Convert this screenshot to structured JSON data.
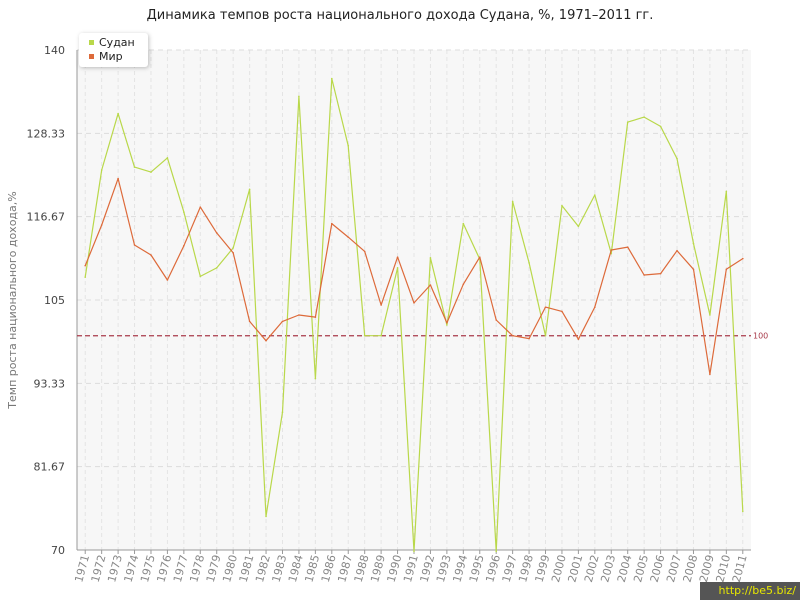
{
  "chart_data": {
    "type": "line",
    "title": "Динамика темпов роста национального дохода Судана, %, 1971–2011 гг.",
    "xlabel": "",
    "ylabel": "Темп роста национального дохода,%",
    "ylim": [
      70,
      140
    ],
    "yticks": [
      "70",
      "81.67",
      "93.33",
      "105",
      "116.67",
      "128.33",
      "140"
    ],
    "grid": true,
    "legend_position": "top-left",
    "reference_line": {
      "value": 100,
      "label": "100",
      "color": "#a83a4a"
    },
    "categories": [
      "1971",
      "1972",
      "1973",
      "1974",
      "1975",
      "1976",
      "1977",
      "1978",
      "1979",
      "1980",
      "1981",
      "1982",
      "1983",
      "1984",
      "1985",
      "1986",
      "1987",
      "1988",
      "1989",
      "1990",
      "1991",
      "1992",
      "1993",
      "1994",
      "1995",
      "1996",
      "1997",
      "1998",
      "1999",
      "2000",
      "2001",
      "2002",
      "2003",
      "2004",
      "2005",
      "2006",
      "2007",
      "2008",
      "2009",
      "2010",
      "2011"
    ],
    "series": [
      {
        "name": "Судан",
        "color": "#b9d84a",
        "values": [
          108.2,
          123.2,
          131.1,
          123.6,
          122.9,
          124.9,
          117.3,
          108.3,
          109.5,
          112.3,
          120.5,
          74.7,
          89.3,
          133.5,
          94.0,
          136.0,
          126.6,
          100.0,
          100.0,
          109.5,
          69.8,
          110.9,
          101.5,
          115.7,
          110.7,
          69.8,
          118.8,
          110.2,
          100.0,
          118.2,
          115.3,
          119.7,
          111.5,
          129.9,
          130.6,
          129.3,
          124.8,
          112.9,
          102.9,
          120.2,
          75.4
        ]
      },
      {
        "name": "Мир",
        "color": "#dd6a3a",
        "values": [
          109.8,
          115.5,
          122.0,
          112.7,
          111.3,
          107.8,
          112.6,
          118.0,
          114.4,
          111.6,
          102.0,
          99.3,
          102.0,
          102.9,
          102.6,
          115.7,
          113.8,
          111.8,
          104.3,
          111.0,
          104.6,
          107.1,
          101.8,
          107.2,
          111.0,
          102.2,
          100.0,
          99.6,
          104.0,
          103.4,
          99.5,
          104.0,
          112.0,
          112.4,
          108.5,
          108.7,
          111.9,
          109.3,
          94.6,
          109.3,
          110.8
        ]
      }
    ]
  },
  "watermark": "http://be5.biz/"
}
